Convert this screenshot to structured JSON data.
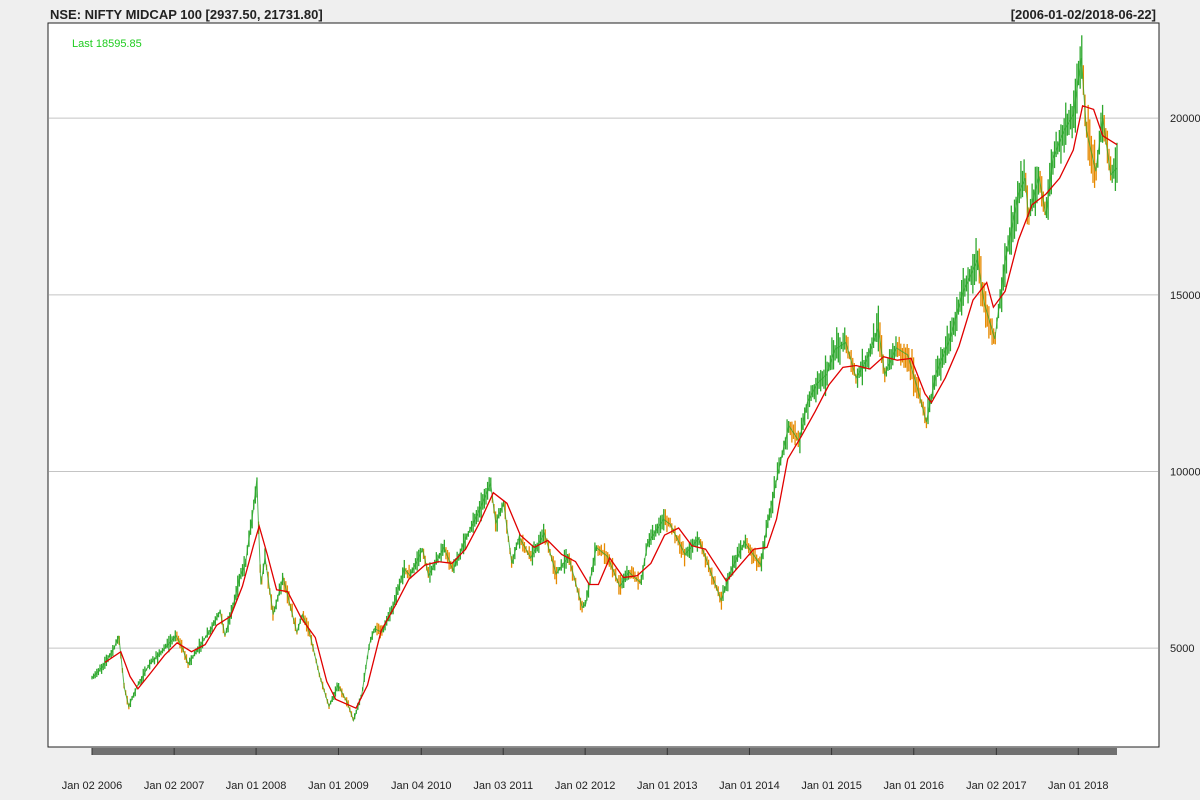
{
  "chart_data": {
    "type": "line",
    "title": "NSE: NIFTY MIDCAP 100 [2937.50, 21731.80]",
    "date_range": "[2006-01-02/2018-06-22]",
    "last_label": "Last 18595.85",
    "ylim": [
      2937.5,
      21731.8
    ],
    "y_ticks": [
      5000,
      10000,
      15000,
      20000
    ],
    "x_range": [
      "2006-01-02",
      "2018-06-22"
    ],
    "x_ticks": [
      {
        "date": "2006-01-02",
        "label": "Jan 02 2006"
      },
      {
        "date": "2007-01-02",
        "label": "Jan 02 2007"
      },
      {
        "date": "2008-01-01",
        "label": "Jan 01 2008"
      },
      {
        "date": "2009-01-01",
        "label": "Jan 01 2009"
      },
      {
        "date": "2010-01-04",
        "label": "Jan 04 2010"
      },
      {
        "date": "2011-01-03",
        "label": "Jan 03 2011"
      },
      {
        "date": "2012-01-02",
        "label": "Jan 02 2012"
      },
      {
        "date": "2013-01-01",
        "label": "Jan 01 2013"
      },
      {
        "date": "2014-01-01",
        "label": "Jan 01 2014"
      },
      {
        "date": "2015-01-01",
        "label": "Jan 01 2015"
      },
      {
        "date": "2016-01-01",
        "label": "Jan 01 2016"
      },
      {
        "date": "2017-01-02",
        "label": "Jan 02 2017"
      },
      {
        "date": "2018-01-01",
        "label": "Jan 01 2018"
      }
    ],
    "grid": true,
    "colors": {
      "background": "#ffffff",
      "frame": "#efefef",
      "grid": "#c4c4c4",
      "candle_up": "#2ea82e",
      "candle_down": "#e68a00",
      "moving_average": "#e00000",
      "last_label": "#1fcc1f",
      "x_axis_bar": "#707070"
    },
    "series": [
      {
        "type": "price",
        "points": [
          [
            "2006-01-02",
            4150
          ],
          [
            "2006-02-15",
            4450
          ],
          [
            "2006-04-10",
            5000
          ],
          [
            "2006-05-01",
            5350
          ],
          [
            "2006-05-25",
            3900
          ],
          [
            "2006-06-14",
            3350
          ],
          [
            "2006-07-20",
            3900
          ],
          [
            "2006-09-15",
            4550
          ],
          [
            "2006-11-15",
            4950
          ],
          [
            "2007-01-10",
            5350
          ],
          [
            "2007-02-05",
            5050
          ],
          [
            "2007-03-05",
            4550
          ],
          [
            "2007-04-20",
            5000
          ],
          [
            "2007-06-20",
            5600
          ],
          [
            "2007-07-25",
            6050
          ],
          [
            "2007-08-16",
            5350
          ],
          [
            "2007-09-25",
            6300
          ],
          [
            "2007-10-18",
            6950
          ],
          [
            "2007-11-15",
            7400
          ],
          [
            "2007-12-20",
            8950
          ],
          [
            "2008-01-04",
            9750
          ],
          [
            "2008-01-22",
            6800
          ],
          [
            "2008-02-10",
            7550
          ],
          [
            "2008-03-17",
            5950
          ],
          [
            "2008-04-30",
            7000
          ],
          [
            "2008-06-30",
            5450
          ],
          [
            "2008-07-25",
            5950
          ],
          [
            "2008-08-25",
            5450
          ],
          [
            "2008-10-10",
            4200
          ],
          [
            "2008-11-20",
            3350
          ],
          [
            "2008-12-31",
            3950
          ],
          [
            "2009-02-10",
            3450
          ],
          [
            "2009-03-09",
            2950
          ],
          [
            "2009-04-15",
            3700
          ],
          [
            "2009-05-18",
            5100
          ],
          [
            "2009-06-10",
            5550
          ],
          [
            "2009-07-13",
            5450
          ],
          [
            "2009-09-01",
            6150
          ],
          [
            "2009-10-20",
            7250
          ],
          [
            "2009-11-15",
            7050
          ],
          [
            "2010-01-10",
            7800
          ],
          [
            "2010-02-05",
            7050
          ],
          [
            "2010-04-15",
            7850
          ],
          [
            "2010-05-25",
            7200
          ],
          [
            "2010-07-20",
            8100
          ],
          [
            "2010-09-15",
            8850
          ],
          [
            "2010-11-08",
            9650
          ],
          [
            "2010-12-01",
            8550
          ],
          [
            "2011-01-05",
            9100
          ],
          [
            "2011-02-10",
            7400
          ],
          [
            "2011-03-15",
            8150
          ],
          [
            "2011-05-05",
            7550
          ],
          [
            "2011-07-05",
            8250
          ],
          [
            "2011-08-26",
            7100
          ],
          [
            "2011-10-20",
            7600
          ],
          [
            "2011-12-20",
            6150
          ],
          [
            "2012-01-05",
            6250
          ],
          [
            "2012-02-20",
            7850
          ],
          [
            "2012-04-10",
            7600
          ],
          [
            "2012-06-04",
            6750
          ],
          [
            "2012-07-15",
            7150
          ],
          [
            "2012-09-05",
            6850
          ],
          [
            "2012-10-05",
            7950
          ],
          [
            "2012-12-15",
            8650
          ],
          [
            "2013-01-15",
            8500
          ],
          [
            "2013-03-20",
            7650
          ],
          [
            "2013-05-20",
            8100
          ],
          [
            "2013-08-28",
            6350
          ],
          [
            "2013-10-15",
            7250
          ],
          [
            "2013-12-10",
            8000
          ],
          [
            "2014-02-20",
            7350
          ],
          [
            "2014-03-20",
            8450
          ],
          [
            "2014-05-16",
            10200
          ],
          [
            "2014-06-25",
            11300
          ],
          [
            "2014-08-10",
            10850
          ],
          [
            "2014-09-15",
            11950
          ],
          [
            "2014-10-30",
            12500
          ],
          [
            "2014-12-10",
            12750
          ],
          [
            "2015-01-15",
            13450
          ],
          [
            "2015-03-05",
            13650
          ],
          [
            "2015-04-20",
            12650
          ],
          [
            "2015-06-05",
            13150
          ],
          [
            "2015-07-28",
            14050
          ],
          [
            "2015-08-25",
            12750
          ],
          [
            "2015-10-15",
            13500
          ],
          [
            "2015-12-05",
            13300
          ],
          [
            "2016-01-20",
            12300
          ],
          [
            "2016-02-26",
            11400
          ],
          [
            "2016-04-10",
            12800
          ],
          [
            "2016-06-10",
            13750
          ],
          [
            "2016-08-05",
            15050
          ],
          [
            "2016-09-20",
            15700
          ],
          [
            "2016-10-10",
            16000
          ],
          [
            "2016-11-10",
            14750
          ],
          [
            "2016-12-26",
            13750
          ],
          [
            "2017-02-10",
            15950
          ],
          [
            "2017-04-10",
            17850
          ],
          [
            "2017-05-10",
            18300
          ],
          [
            "2017-05-25",
            17200
          ],
          [
            "2017-07-10",
            18350
          ],
          [
            "2017-08-10",
            17250
          ],
          [
            "2017-09-10",
            18850
          ],
          [
            "2017-10-30",
            19650
          ],
          [
            "2017-12-10",
            20100
          ],
          [
            "2018-01-15",
            21700
          ],
          [
            "2018-02-06",
            19650
          ],
          [
            "2018-03-20",
            18500
          ],
          [
            "2018-04-20",
            20000
          ],
          [
            "2018-05-25",
            18400
          ],
          [
            "2018-06-22",
            18595.85
          ]
        ]
      },
      {
        "type": "moving_average",
        "points": [
          [
            "2006-03-01",
            4600
          ],
          [
            "2006-05-10",
            4900
          ],
          [
            "2006-06-20",
            4200
          ],
          [
            "2006-07-25",
            3850
          ],
          [
            "2006-09-20",
            4300
          ],
          [
            "2006-11-20",
            4800
          ],
          [
            "2007-01-15",
            5150
          ],
          [
            "2007-03-20",
            4900
          ],
          [
            "2007-05-20",
            5100
          ],
          [
            "2007-07-10",
            5650
          ],
          [
            "2007-09-10",
            5900
          ],
          [
            "2007-11-01",
            6750
          ],
          [
            "2007-12-20",
            7900
          ],
          [
            "2008-01-15",
            8450
          ],
          [
            "2008-02-20",
            7650
          ],
          [
            "2008-04-01",
            6650
          ],
          [
            "2008-05-20",
            6600
          ],
          [
            "2008-07-20",
            5850
          ],
          [
            "2008-09-20",
            5300
          ],
          [
            "2008-11-10",
            4050
          ],
          [
            "2008-12-20",
            3550
          ],
          [
            "2009-03-20",
            3300
          ],
          [
            "2009-05-10",
            3950
          ],
          [
            "2009-07-10",
            5500
          ],
          [
            "2009-09-10",
            6200
          ],
          [
            "2009-11-10",
            6950
          ],
          [
            "2010-01-20",
            7350
          ],
          [
            "2010-03-20",
            7450
          ],
          [
            "2010-05-20",
            7400
          ],
          [
            "2010-07-20",
            7800
          ],
          [
            "2010-09-20",
            8550
          ],
          [
            "2010-11-20",
            9400
          ],
          [
            "2011-01-20",
            9100
          ],
          [
            "2011-03-20",
            8200
          ],
          [
            "2011-05-20",
            7850
          ],
          [
            "2011-07-20",
            8050
          ],
          [
            "2011-09-20",
            7650
          ],
          [
            "2011-11-20",
            7450
          ],
          [
            "2012-01-20",
            6800
          ],
          [
            "2012-03-01",
            6800
          ],
          [
            "2012-04-20",
            7550
          ],
          [
            "2012-06-20",
            7000
          ],
          [
            "2012-08-20",
            7050
          ],
          [
            "2012-10-20",
            7400
          ],
          [
            "2012-12-20",
            8200
          ],
          [
            "2013-02-20",
            8400
          ],
          [
            "2013-04-20",
            7900
          ],
          [
            "2013-06-20",
            7800
          ],
          [
            "2013-09-20",
            6900
          ],
          [
            "2013-11-20",
            7350
          ],
          [
            "2014-01-20",
            7800
          ],
          [
            "2014-03-20",
            7850
          ],
          [
            "2014-05-01",
            8650
          ],
          [
            "2014-06-20",
            10350
          ],
          [
            "2014-08-20",
            11000
          ],
          [
            "2014-10-20",
            11700
          ],
          [
            "2014-12-20",
            12450
          ],
          [
            "2015-02-20",
            12950
          ],
          [
            "2015-04-20",
            13000
          ],
          [
            "2015-06-20",
            12900
          ],
          [
            "2015-08-20",
            13250
          ],
          [
            "2015-10-20",
            13150
          ],
          [
            "2015-12-20",
            13200
          ],
          [
            "2016-02-20",
            12200
          ],
          [
            "2016-03-20",
            11950
          ],
          [
            "2016-05-20",
            12650
          ],
          [
            "2016-07-20",
            13550
          ],
          [
            "2016-09-20",
            14850
          ],
          [
            "2016-11-20",
            15350
          ],
          [
            "2016-12-20",
            14650
          ],
          [
            "2017-02-10",
            15100
          ],
          [
            "2017-04-10",
            16550
          ],
          [
            "2017-06-10",
            17550
          ],
          [
            "2017-08-10",
            17850
          ],
          [
            "2017-10-10",
            18300
          ],
          [
            "2017-12-10",
            19100
          ],
          [
            "2018-01-20",
            20350
          ],
          [
            "2018-03-10",
            20250
          ],
          [
            "2018-04-20",
            19500
          ],
          [
            "2018-06-22",
            19250
          ]
        ]
      }
    ]
  }
}
